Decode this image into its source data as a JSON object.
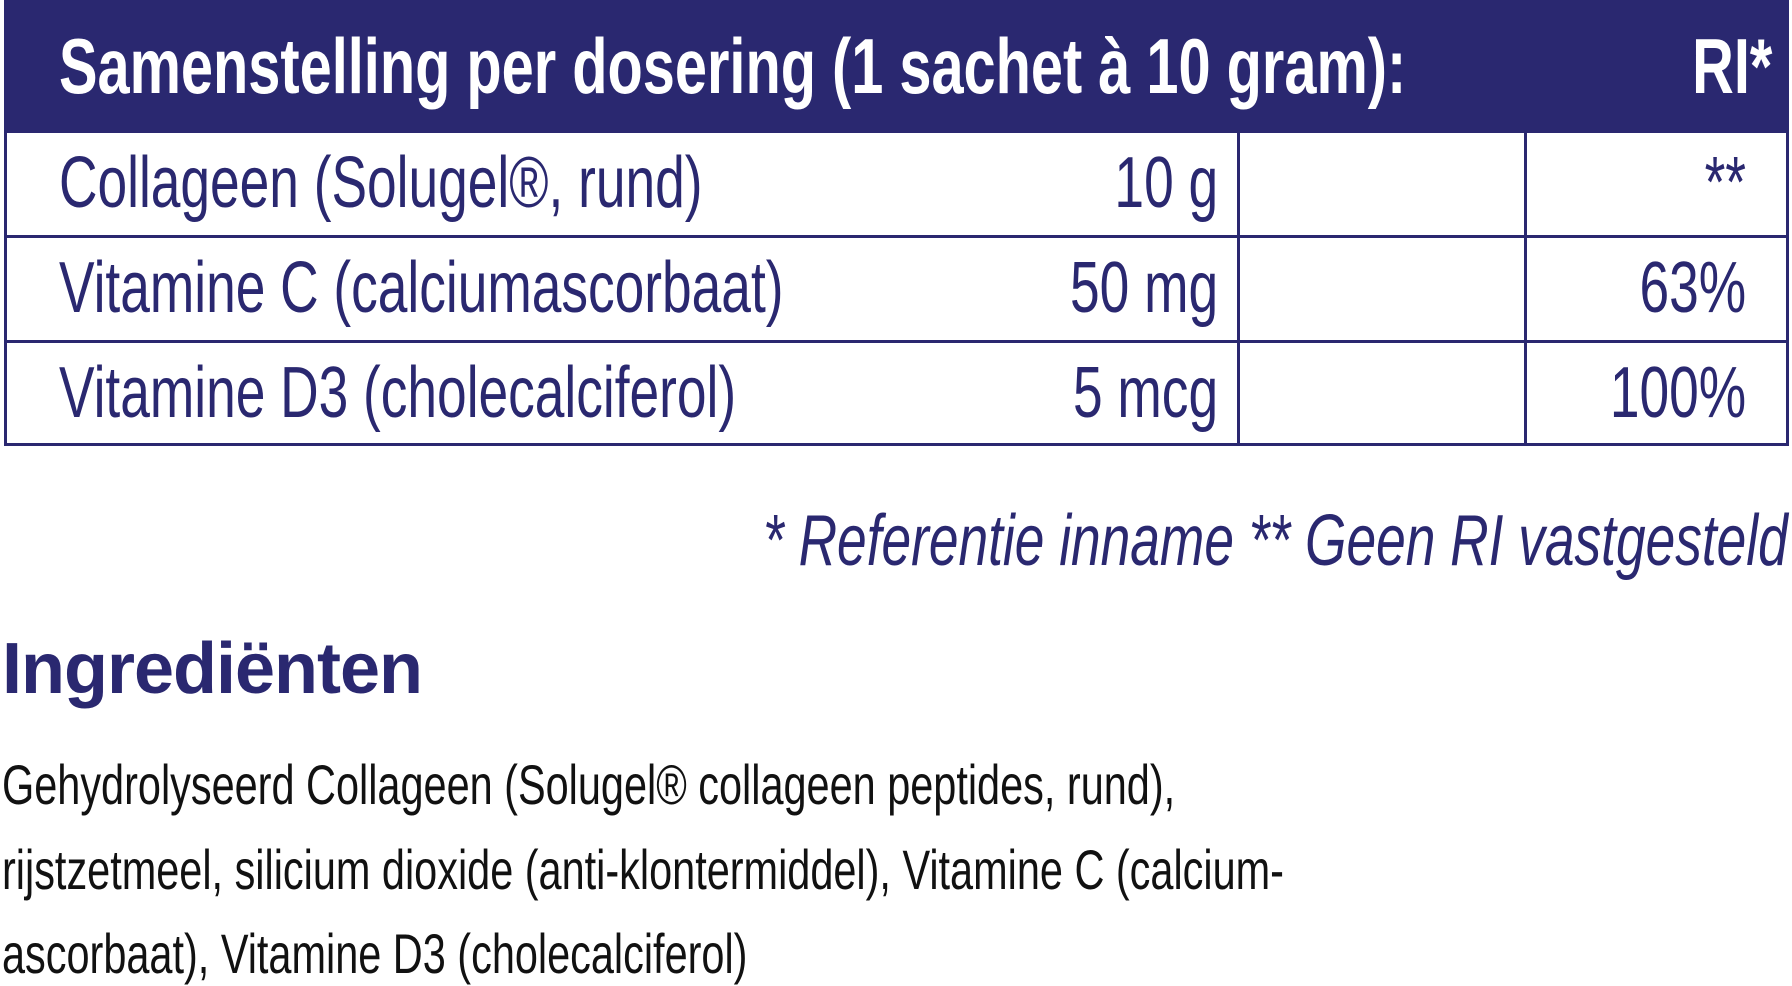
{
  "table": {
    "header": "Samenstelling per dosering (1 sachet à 10 gram):",
    "header_ri": "RI*",
    "rows": [
      {
        "name": "Collageen (Solugel®, rund)",
        "amount": "10 g",
        "ri": "**"
      },
      {
        "name": "Vitamine C (calciumascorbaat)",
        "amount": "50 mg",
        "ri": "63%"
      },
      {
        "name": "Vitamine D3 (cholecalciferol)",
        "amount": "5 mcg",
        "ri": "100%"
      }
    ]
  },
  "footnote": "* Referentie inname   ** Geen RI vastgesteld",
  "ingredients": {
    "title": "Ingrediënten",
    "lines": [
      "Gehydrolyseerd Collageen (Solugel® collageen peptides, rund),",
      "rijstzetmeel, silicium dioxide (anti-klontermiddel), Vitamine C (calcium-",
      "ascorbaat), Vitamine D3 (cholecalciferol)"
    ]
  },
  "colors": {
    "brand": "#2a2870"
  }
}
